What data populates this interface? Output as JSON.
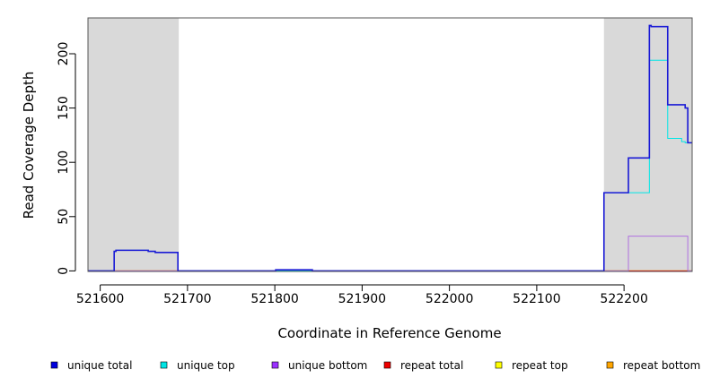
{
  "chart_data": {
    "type": "line",
    "xlabel": "Coordinate in Reference Genome",
    "ylabel": "Read Coverage Depth",
    "xlim": [
      521586,
      522278
    ],
    "ylim": [
      -0.5,
      233
    ],
    "x_ticks": [
      521600,
      521700,
      521800,
      521900,
      522000,
      522100,
      522200
    ],
    "x_tick_labels": [
      "521600",
      "521700",
      "521800",
      "521900",
      "522000",
      "522100",
      "522200"
    ],
    "y_ticks": [
      0,
      50,
      100,
      150,
      200
    ],
    "y_tick_labels": [
      "0",
      "50",
      "100",
      "150",
      "200"
    ],
    "shaded_regions": [
      {
        "x_start": 521586,
        "x_end": 521690
      },
      {
        "x_start": 522177,
        "x_end": 522278
      }
    ],
    "shade_color": "#d9d9d9",
    "legend_position": "bottom",
    "series": [
      {
        "name": "unique total",
        "color": "#0000dd",
        "line_color": "#1a1ad6",
        "points": [
          [
            521586,
            0
          ],
          [
            521616,
            0
          ],
          [
            521616,
            18
          ],
          [
            521618,
            18
          ],
          [
            521618,
            19
          ],
          [
            521655,
            19
          ],
          [
            521655,
            18
          ],
          [
            521663,
            18
          ],
          [
            521663,
            17
          ],
          [
            521689,
            17
          ],
          [
            521689,
            0
          ],
          [
            521801,
            0
          ],
          [
            521801,
            1
          ],
          [
            521843,
            1
          ],
          [
            521843,
            0
          ],
          [
            522177,
            0
          ],
          [
            522177,
            72
          ],
          [
            522205,
            72
          ],
          [
            522205,
            104
          ],
          [
            522229,
            104
          ],
          [
            522229,
            226
          ],
          [
            522231,
            226
          ],
          [
            522231,
            225
          ],
          [
            522250,
            225
          ],
          [
            522250,
            153
          ],
          [
            522270,
            153
          ],
          [
            522270,
            150
          ],
          [
            522273,
            150
          ],
          [
            522273,
            118
          ],
          [
            522278,
            118
          ]
        ]
      },
      {
        "name": "unique top",
        "color": "#00e5e5",
        "line_color": "#00e5e5",
        "points": [
          [
            521586,
            0
          ],
          [
            521616,
            0
          ],
          [
            521616,
            18
          ],
          [
            521618,
            18
          ],
          [
            521618,
            19
          ],
          [
            521655,
            19
          ],
          [
            521655,
            18
          ],
          [
            521663,
            18
          ],
          [
            521663,
            17
          ],
          [
            521689,
            17
          ],
          [
            521689,
            0
          ],
          [
            522177,
            0
          ],
          [
            522177,
            72
          ],
          [
            522229,
            72
          ],
          [
            522229,
            194
          ],
          [
            522250,
            194
          ],
          [
            522250,
            122
          ],
          [
            522266,
            122
          ],
          [
            522266,
            119
          ],
          [
            522270,
            119
          ],
          [
            522270,
            118
          ],
          [
            522278,
            118
          ]
        ]
      },
      {
        "name": "unique bottom",
        "color": "#9b30ff",
        "line_color": "#b070e0",
        "points": [
          [
            521586,
            0
          ],
          [
            521801,
            0
          ],
          [
            521801,
            1
          ],
          [
            521843,
            1
          ],
          [
            521843,
            0
          ],
          [
            522205,
            0
          ],
          [
            522205,
            32
          ],
          [
            522273,
            32
          ],
          [
            522273,
            0
          ],
          [
            522278,
            0
          ]
        ]
      },
      {
        "name": "repeat total",
        "color": "#ee0000",
        "line_color": "#ee0000",
        "points": [
          [
            521586,
            0
          ],
          [
            522278,
            0
          ]
        ]
      },
      {
        "name": "repeat top",
        "color": "#ffff00",
        "line_color": "#ffff00",
        "points": [
          [
            521586,
            0
          ],
          [
            522278,
            0
          ]
        ]
      },
      {
        "name": "repeat bottom",
        "color": "#ffa500",
        "line_color": "#ffa500",
        "points": [
          [
            521586,
            0
          ],
          [
            522278,
            0
          ]
        ]
      }
    ]
  }
}
